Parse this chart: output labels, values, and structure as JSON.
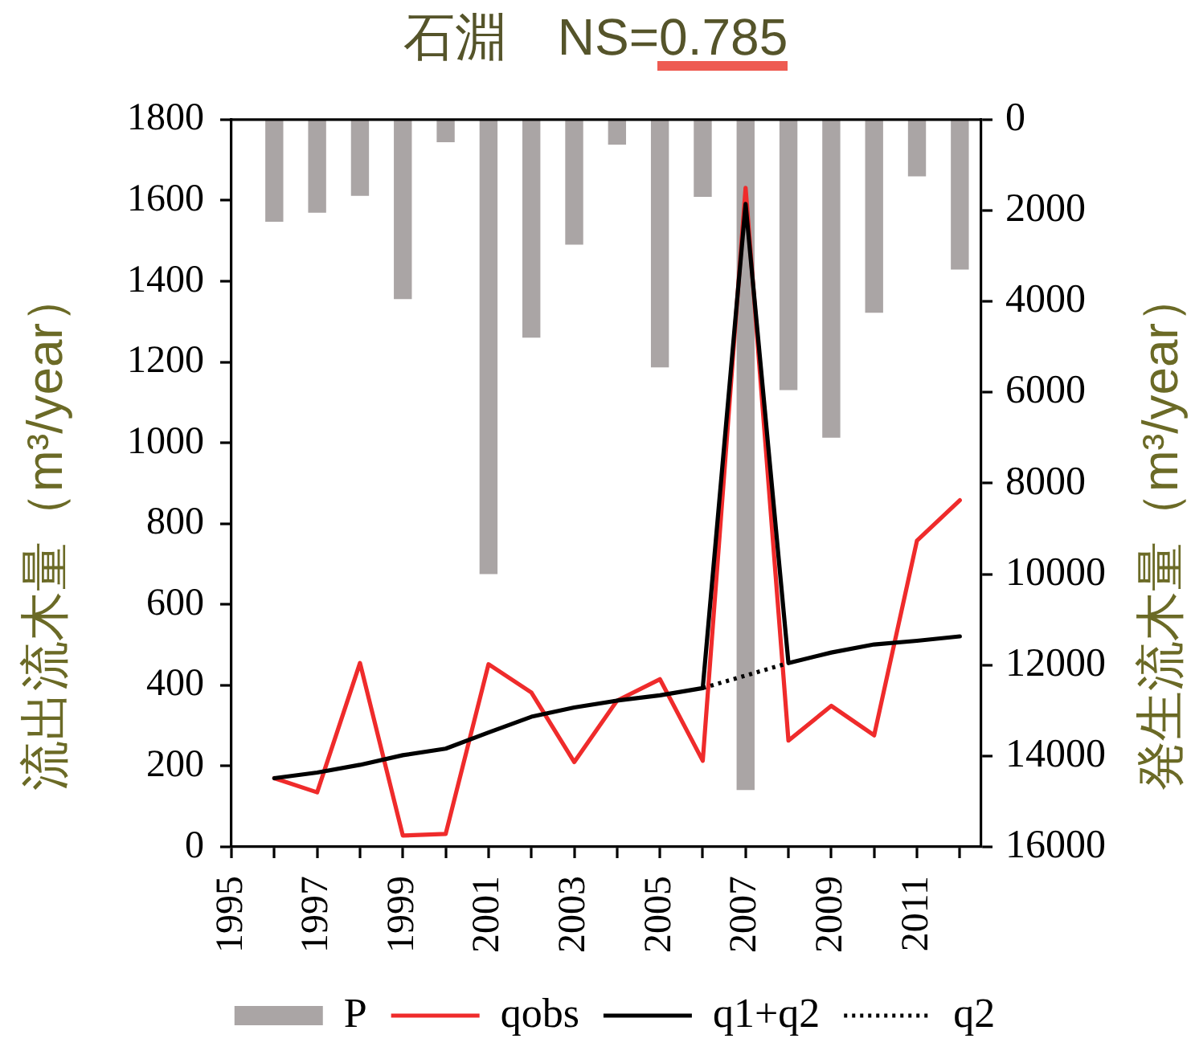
{
  "chart_data": {
    "type": "line",
    "title": "石淵　NS=0.785",
    "ylabel": "流出流木量（m³/year）",
    "y2label": "発生流木量（m³/year）",
    "x": [
      1996,
      1997,
      1998,
      1999,
      2000,
      2001,
      2002,
      2003,
      2004,
      2005,
      2006,
      2007,
      2008,
      2009,
      2010,
      2011,
      2012
    ],
    "xlim": [
      1995,
      2012.5
    ],
    "xticks": [
      1995,
      {
        "value": 1996,
        "label": null
      },
      1997,
      {
        "value": 1998,
        "label": null
      },
      1999,
      {
        "value": 2000,
        "label": null
      },
      2001,
      {
        "value": 2002,
        "label": null
      },
      2003,
      {
        "value": 2004,
        "label": null
      },
      2005,
      {
        "value": 2006,
        "label": null
      },
      2007,
      {
        "value": 2008,
        "label": null
      },
      2009,
      {
        "value": 2010,
        "label": null
      },
      2011,
      {
        "value": 2012,
        "label": null
      }
    ],
    "ylim": [
      0,
      1800
    ],
    "yticks": [
      0,
      200,
      400,
      600,
      800,
      1000,
      1200,
      1400,
      1600,
      1800
    ],
    "y2lim": [
      16000,
      0
    ],
    "y2ticks": [
      0,
      2000,
      4000,
      6000,
      8000,
      10000,
      12000,
      14000,
      16000
    ],
    "series": [
      {
        "name": "P",
        "type": "bar",
        "axis": "y2",
        "color": "#aaa5a5",
        "values": [
          2250,
          2050,
          1680,
          3950,
          500,
          10000,
          4800,
          2750,
          550,
          5450,
          1700,
          14750,
          5950,
          7000,
          4250,
          1250,
          3300
        ]
      },
      {
        "name": "qobs",
        "color": "#ef2b2b",
        "values": [
          170,
          135,
          455,
          28,
          32,
          452,
          382,
          210,
          362,
          415,
          213,
          1631,
          263,
          349,
          276,
          758,
          858
        ]
      },
      {
        "name": "q1+q2",
        "color": "#000000",
        "values": [
          170,
          184,
          203,
          227,
          243,
          283,
          322,
          345,
          362,
          375,
          393,
          1591,
          455,
          481,
          501,
          510,
          521
        ]
      },
      {
        "name": "q2",
        "color": "#000000",
        "line_style": "dotted",
        "values": [
          null,
          null,
          null,
          null,
          null,
          null,
          null,
          null,
          null,
          null,
          393,
          424,
          455,
          null,
          null,
          null,
          null
        ]
      }
    ],
    "marker": "none",
    "grid": false,
    "legend": "bottom"
  }
}
